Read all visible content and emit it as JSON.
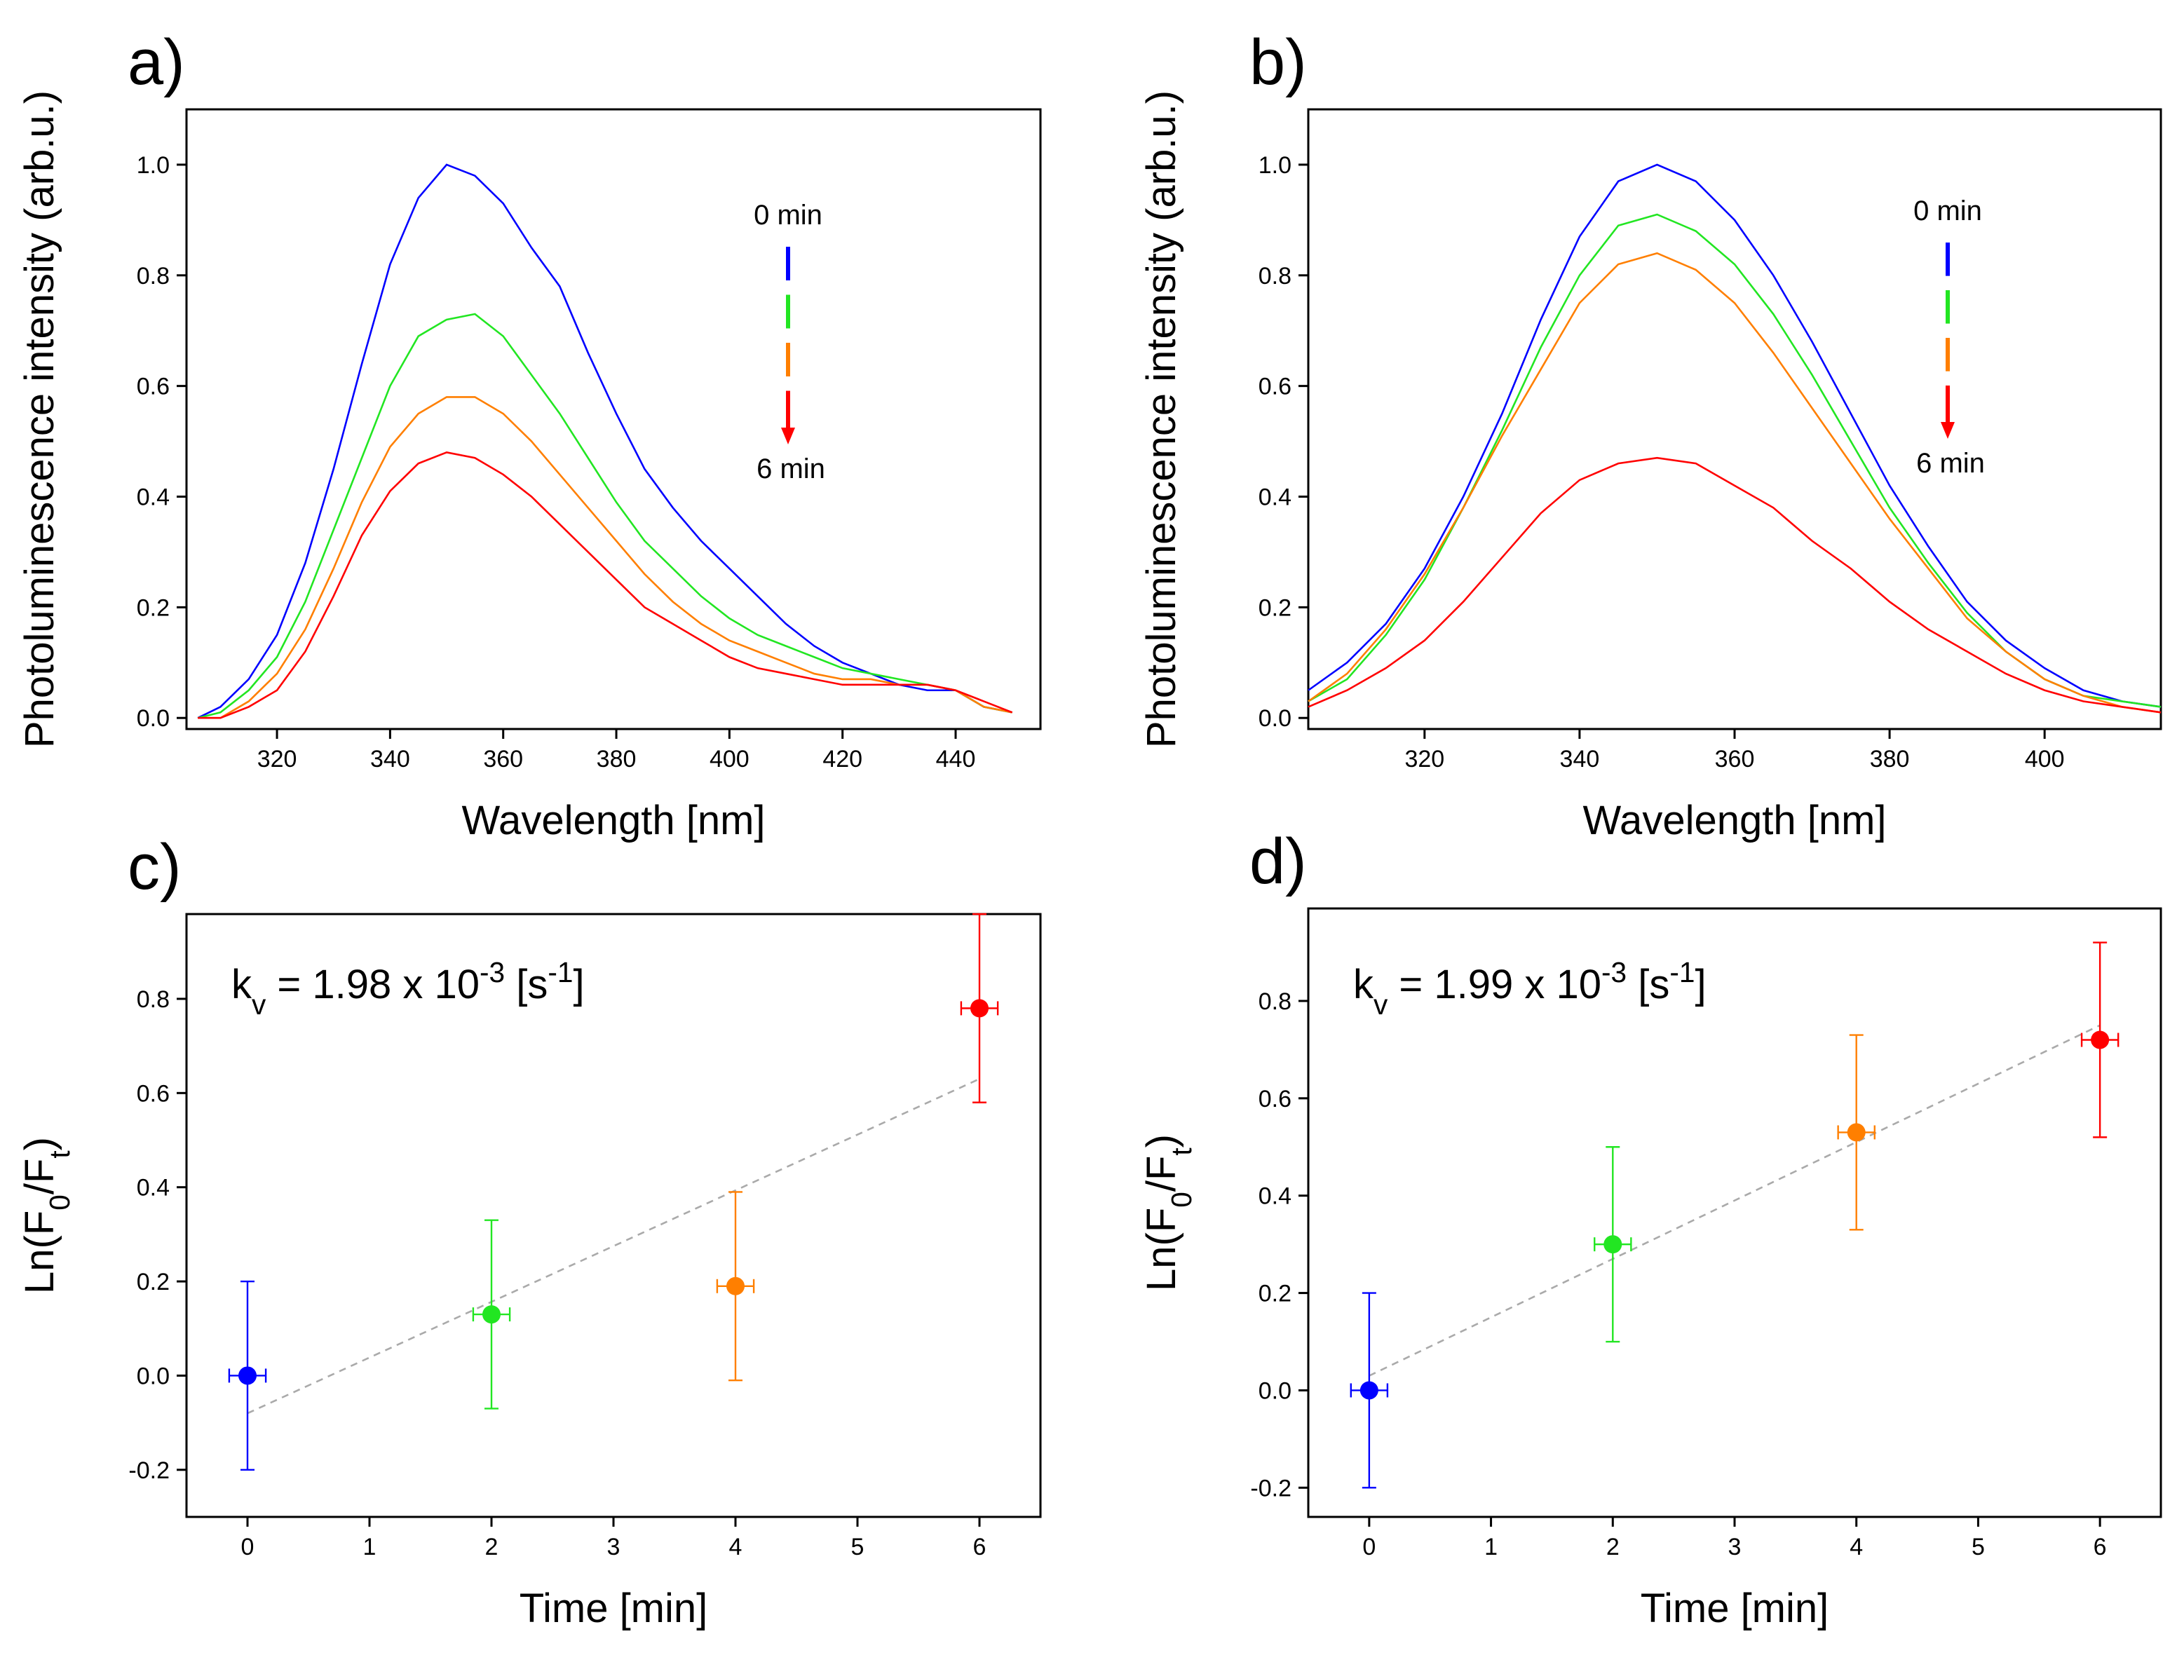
{
  "chart_data": [
    {
      "type": "line",
      "panel_label": "a)",
      "x_label": "Wavelength [nm]",
      "y_label": "Photoluminescence intensity (arb.u.)",
      "xlim": [
        304,
        455
      ],
      "ylim": [
        -0.02,
        1.1
      ],
      "xticks": [
        320,
        340,
        360,
        380,
        400,
        420,
        440
      ],
      "yticks": [
        {
          "value": 0,
          "label": "0.0"
        },
        0.2,
        0.4,
        0.6,
        0.8,
        {
          "value": 1,
          "label": "1.0"
        }
      ],
      "annotations": [
        "0 min",
        "6 min"
      ],
      "x": [
        306,
        310,
        315,
        320,
        325,
        330,
        335,
        340,
        345,
        350,
        355,
        360,
        365,
        370,
        375,
        380,
        385,
        390,
        395,
        400,
        405,
        410,
        415,
        420,
        425,
        430,
        435,
        440,
        445,
        450
      ],
      "series": [
        {
          "color": "#0000ff",
          "values": [
            0,
            0.02,
            0.07,
            0.15,
            0.28,
            0.45,
            0.64,
            0.82,
            0.94,
            1.0,
            0.98,
            0.93,
            0.85,
            0.78,
            0.66,
            0.55,
            0.45,
            0.38,
            0.32,
            0.27,
            0.22,
            0.17,
            0.13,
            0.1,
            0.08,
            0.06,
            0.05,
            0.05,
            0.02,
            0.01
          ]
        },
        {
          "color": "#22e622",
          "values": [
            0,
            0.01,
            0.05,
            0.11,
            0.21,
            0.34,
            0.47,
            0.6,
            0.69,
            0.72,
            0.73,
            0.69,
            0.62,
            0.55,
            0.47,
            0.39,
            0.32,
            0.27,
            0.22,
            0.18,
            0.15,
            0.13,
            0.11,
            0.09,
            0.08,
            0.07,
            0.06,
            0.05,
            0.02,
            0.01
          ]
        },
        {
          "color": "#ff7f00",
          "values": [
            0,
            0,
            0.03,
            0.08,
            0.16,
            0.27,
            0.39,
            0.49,
            0.55,
            0.58,
            0.58,
            0.55,
            0.5,
            0.44,
            0.38,
            0.32,
            0.26,
            0.21,
            0.17,
            0.14,
            0.12,
            0.1,
            0.08,
            0.07,
            0.07,
            0.06,
            0.06,
            0.05,
            0.02,
            0.01
          ]
        },
        {
          "color": "#ff0000",
          "values": [
            0,
            0,
            0.02,
            0.05,
            0.12,
            0.22,
            0.33,
            0.41,
            0.46,
            0.48,
            0.47,
            0.44,
            0.4,
            0.35,
            0.3,
            0.25,
            0.2,
            0.17,
            0.14,
            0.11,
            0.09,
            0.08,
            0.07,
            0.06,
            0.06,
            0.06,
            0.06,
            0.05,
            0.03,
            0.01
          ]
        }
      ]
    },
    {
      "type": "line",
      "panel_label": "b)",
      "x_label": "Wavelength [nm]",
      "y_label": "Photoluminescence intensity (arb.u.)",
      "xlim": [
        305,
        415
      ],
      "ylim": [
        -0.02,
        1.1
      ],
      "xticks": [
        320,
        340,
        360,
        380,
        400
      ],
      "yticks": [
        {
          "value": 0,
          "label": "0.0"
        },
        0.2,
        0.4,
        0.6,
        0.8,
        {
          "value": 1,
          "label": "1.0"
        }
      ],
      "annotations": [
        "0 min",
        "6 min"
      ],
      "x": [
        305,
        310,
        315,
        320,
        325,
        330,
        335,
        340,
        345,
        350,
        355,
        360,
        365,
        370,
        375,
        380,
        385,
        390,
        395,
        400,
        405,
        410,
        415
      ],
      "series": [
        {
          "color": "#0000ff",
          "values": [
            0.05,
            0.1,
            0.17,
            0.27,
            0.4,
            0.55,
            0.72,
            0.87,
            0.97,
            1.0,
            0.97,
            0.9,
            0.8,
            0.68,
            0.55,
            0.42,
            0.31,
            0.21,
            0.14,
            0.09,
            0.05,
            0.03,
            0.02
          ]
        },
        {
          "color": "#22e622",
          "values": [
            0.03,
            0.07,
            0.15,
            0.25,
            0.38,
            0.52,
            0.67,
            0.8,
            0.89,
            0.91,
            0.88,
            0.82,
            0.73,
            0.62,
            0.5,
            0.38,
            0.28,
            0.19,
            0.12,
            0.07,
            0.04,
            0.03,
            0.02
          ]
        },
        {
          "color": "#ff7f00",
          "values": [
            0.03,
            0.08,
            0.16,
            0.26,
            0.38,
            0.51,
            0.63,
            0.75,
            0.82,
            0.84,
            0.81,
            0.75,
            0.66,
            0.56,
            0.46,
            0.36,
            0.27,
            0.18,
            0.12,
            0.07,
            0.04,
            0.02,
            0.01
          ]
        },
        {
          "color": "#ff0000",
          "values": [
            0.02,
            0.05,
            0.09,
            0.14,
            0.21,
            0.29,
            0.37,
            0.43,
            0.46,
            0.47,
            0.46,
            0.42,
            0.38,
            0.32,
            0.27,
            0.21,
            0.16,
            0.12,
            0.08,
            0.05,
            0.03,
            0.02,
            0.01
          ]
        }
      ]
    },
    {
      "type": "scatter",
      "panel_label": "c)",
      "x_label": "Time [min]",
      "y_label": [
        {
          "text": "Ln(F"
        },
        {
          "text": "0",
          "shift": "sub"
        },
        {
          "text": "/F"
        },
        {
          "text": "t",
          "shift": "sub"
        },
        {
          "text": ")"
        }
      ],
      "annotation": [
        {
          "text": "k"
        },
        {
          "text": "v",
          "shift": "sub"
        },
        {
          "text": " = 1.98 x 10"
        },
        {
          "text": "-3",
          "shift": "super"
        },
        {
          "text": " [s"
        },
        {
          "text": "-1",
          "shift": "super"
        },
        {
          "text": "]"
        }
      ],
      "xlim": [
        -0.5,
        6.5
      ],
      "ylim": [
        -0.3,
        0.98
      ],
      "xticks": [
        0,
        1,
        2,
        3,
        4,
        5,
        6
      ],
      "yticks": [
        -0.2,
        {
          "value": 0,
          "label": "0.0"
        },
        0.2,
        0.4,
        0.6,
        0.8
      ],
      "series": [
        {
          "x": [
            0,
            2,
            4,
            6
          ],
          "values": [
            0,
            0.13,
            0.19,
            0.78
          ],
          "y_error": [
            0.2,
            0.2,
            0.2,
            0.2
          ],
          "x_error": [
            0.15,
            0.15,
            0.15,
            0.15
          ],
          "colors": [
            "#0000ff",
            "#22e622",
            "#ff7f00",
            "#ff0000"
          ]
        }
      ],
      "fit": {
        "x": [
          0,
          6
        ],
        "values": [
          -0.08,
          0.63
        ],
        "color": "#aaaaaa"
      }
    },
    {
      "type": "scatter",
      "panel_label": "d)",
      "x_label": "Time [min]",
      "y_label": [
        {
          "text": "Ln(F"
        },
        {
          "text": "0",
          "shift": "sub"
        },
        {
          "text": "/F"
        },
        {
          "text": "t",
          "shift": "sub"
        },
        {
          "text": ")"
        }
      ],
      "annotation": [
        {
          "text": "k"
        },
        {
          "text": "v",
          "shift": "sub"
        },
        {
          "text": " = 1.99 x 10"
        },
        {
          "text": "-3",
          "shift": "super"
        },
        {
          "text": " [s"
        },
        {
          "text": "-1",
          "shift": "super"
        },
        {
          "text": "]"
        }
      ],
      "xlim": [
        -0.5,
        6.5
      ],
      "ylim": [
        -0.26,
        0.99
      ],
      "xticks": [
        0,
        1,
        2,
        3,
        4,
        5,
        6
      ],
      "yticks": [
        -0.2,
        {
          "value": 0,
          "label": "0.0"
        },
        0.2,
        0.4,
        0.6,
        0.8
      ],
      "series": [
        {
          "x": [
            0,
            2,
            4,
            6
          ],
          "values": [
            0,
            0.3,
            0.53,
            0.72
          ],
          "y_error": [
            0.2,
            0.2,
            0.2,
            0.2
          ],
          "x_error": [
            0.15,
            0.15,
            0.15,
            0.15
          ],
          "colors": [
            "#0000ff",
            "#22e622",
            "#ff7f00",
            "#ff0000"
          ]
        }
      ],
      "fit": {
        "x": [
          0,
          6
        ],
        "values": [
          0.03,
          0.75
        ],
        "color": "#aaaaaa"
      }
    }
  ]
}
